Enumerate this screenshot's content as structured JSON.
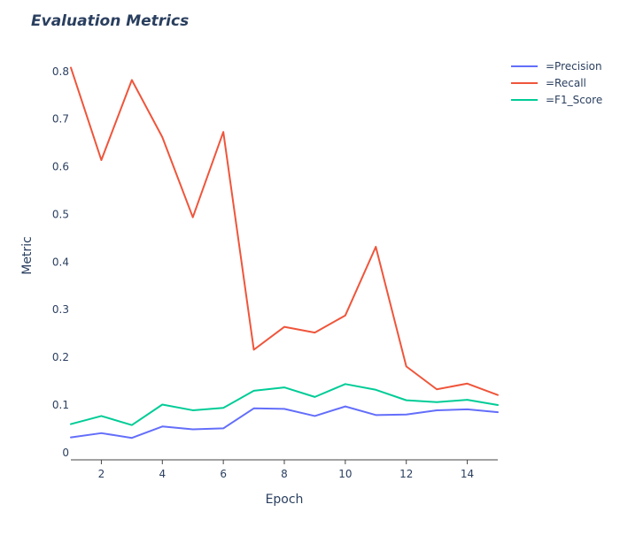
{
  "chart_data": {
    "type": "line",
    "title": "Evaluation Metrics",
    "xlabel": "Epoch",
    "ylabel": "Metric",
    "x": [
      1,
      2,
      3,
      4,
      5,
      6,
      7,
      8,
      9,
      10,
      11,
      12,
      13,
      14,
      15
    ],
    "xlim": [
      1,
      15
    ],
    "ylim": [
      -0.015,
      0.82
    ],
    "x_ticks": [
      2,
      4,
      6,
      8,
      10,
      12,
      14
    ],
    "y_ticks": [
      0,
      0.1,
      0.2,
      0.3,
      0.4,
      0.5,
      0.6,
      0.7,
      0.8
    ],
    "grid": false,
    "legend_position": "top-right",
    "series": [
      {
        "name": "=Precision",
        "color": "#636efa",
        "values": [
          0.032,
          0.041,
          0.031,
          0.055,
          0.049,
          0.051,
          0.093,
          0.092,
          0.077,
          0.097,
          0.079,
          0.08,
          0.089,
          0.091,
          0.085
        ]
      },
      {
        "name": "=Recall",
        "color": "#ef553b",
        "values": [
          0.808,
          0.614,
          0.782,
          0.662,
          0.494,
          0.673,
          0.216,
          0.264,
          0.252,
          0.288,
          0.432,
          0.181,
          0.133,
          0.145,
          0.121
        ]
      },
      {
        "name": "=F1_Score",
        "color": "#00cc96",
        "values": [
          0.06,
          0.077,
          0.058,
          0.101,
          0.089,
          0.094,
          0.13,
          0.137,
          0.117,
          0.144,
          0.132,
          0.11,
          0.106,
          0.111,
          0.1
        ]
      }
    ]
  }
}
